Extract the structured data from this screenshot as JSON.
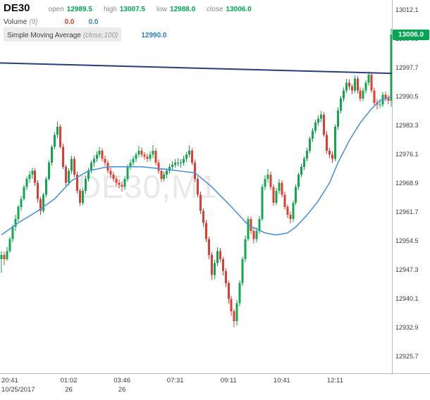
{
  "watermark": "DE30,M1",
  "header": {
    "symbol": "DE30",
    "open_label": "open",
    "open_value": "12989.5",
    "high_label": "high",
    "high_value": "13007.5",
    "low_label": "low",
    "low_value": "12988.0",
    "close_label": "close",
    "close_value": "13006.0",
    "volume_name": "Volume",
    "volume_params": "(9)",
    "volume_value_1": "0.0",
    "volume_value_2": "0.0",
    "sma_name": "Simple Moving Average",
    "sma_params": "(close,100)",
    "sma_value": "12990.0"
  },
  "price_axis": {
    "badge": "13006.0"
  },
  "colors": {
    "bull": "#0fa84e",
    "bear": "#e03c31",
    "sma": "#4f94d8",
    "trendline": "#2b3f77",
    "badge_bg": "#00a651",
    "axis_text": "#3c3c3c"
  },
  "chart_data": {
    "type": "candlestick",
    "symbol": "DE30",
    "timeframe": "M1",
    "title": "DE30,M1",
    "ylim": [
      12921.5,
      13014.6
    ],
    "y_ticks": [
      13012.1,
      13004.9,
      12997.7,
      12990.5,
      12983.3,
      12976.1,
      12968.9,
      12961.7,
      12954.5,
      12947.3,
      12940.1,
      12932.9,
      12925.7
    ],
    "x_ticks": [
      {
        "index": 3,
        "label": "20:41",
        "sub": "10/25/2017"
      },
      {
        "index": 24,
        "label": "01:02",
        "sub": "26"
      },
      {
        "index": 43,
        "label": "03:46",
        "sub": "26"
      },
      {
        "index": 62,
        "label": "07:31",
        "sub": ""
      },
      {
        "index": 81,
        "label": "09:11",
        "sub": ""
      },
      {
        "index": 100,
        "label": "10:41",
        "sub": ""
      },
      {
        "index": 119,
        "label": "12:11",
        "sub": ""
      }
    ],
    "last_price": 13006.0,
    "ohlc_last": {
      "open": 12989.5,
      "high": 13007.5,
      "low": 12988.0,
      "close": 13006.0
    },
    "sma_period": 100,
    "sma_anchors": [
      [
        0,
        12956
      ],
      [
        6,
        12959
      ],
      [
        13,
        12962
      ],
      [
        19,
        12965
      ],
      [
        25,
        12969.5
      ],
      [
        31,
        12972
      ],
      [
        38,
        12973
      ],
      [
        50,
        12973
      ],
      [
        57,
        12972.5
      ],
      [
        63,
        12972
      ],
      [
        69,
        12971.5
      ],
      [
        75,
        12968
      ],
      [
        82,
        12963
      ],
      [
        88,
        12958.5
      ],
      [
        94,
        12956.5
      ],
      [
        98,
        12956
      ],
      [
        102,
        12956.5
      ],
      [
        105,
        12958
      ],
      [
        109,
        12961
      ],
      [
        113,
        12964.5
      ],
      [
        117,
        12969
      ],
      [
        120,
        12974
      ],
      [
        124,
        12979.5
      ],
      [
        128,
        12984
      ],
      [
        132,
        12987.5
      ],
      [
        135,
        12989.5
      ],
      [
        139,
        12990.5
      ]
    ],
    "trendline": {
      "left_price": 12998.9,
      "right_price": 12996.3
    },
    "candles": [
      [
        12950.0,
        12952.0,
        12946.5,
        12951.0
      ],
      [
        12951.0,
        12951.8,
        12948.5,
        12950.0
      ],
      [
        12950.0,
        12953.0,
        12949.5,
        12952.0
      ],
      [
        12952.0,
        12955.5,
        12951.5,
        12955.0
      ],
      [
        12955.0,
        12958.6,
        12954.2,
        12958.0
      ],
      [
        12958.0,
        12961.0,
        12957.0,
        12960.0
      ],
      [
        12960.0,
        12963.5,
        12959.3,
        12963.0
      ],
      [
        12963.0,
        12965.8,
        12962.0,
        12965.0
      ],
      [
        12965.0,
        12968.4,
        12964.5,
        12968.0
      ],
      [
        12968.0,
        12970.6,
        12967.2,
        12970.0
      ],
      [
        12970.0,
        12971.9,
        12969.0,
        12971.0
      ],
      [
        12971.0,
        12972.8,
        12970.0,
        12972.0
      ],
      [
        12972.0,
        12972.6,
        12968.2,
        12969.0
      ],
      [
        12969.0,
        12969.6,
        12964.0,
        12965.0
      ],
      [
        12965.0,
        12965.5,
        12961.0,
        12962.0
      ],
      [
        12962.0,
        12966.5,
        12961.5,
        12966.0
      ],
      [
        12966.0,
        12970.5,
        12965.4,
        12970.0
      ],
      [
        12970.0,
        12974.6,
        12969.5,
        12974.0
      ],
      [
        12974.0,
        12978.5,
        12973.2,
        12978.0
      ],
      [
        12978.0,
        12981.7,
        12977.4,
        12981.0
      ],
      [
        12981.0,
        12984.3,
        12980.2,
        12983.0
      ],
      [
        12983.0,
        12983.6,
        12977.5,
        12978.0
      ],
      [
        12978.0,
        12978.8,
        12972.4,
        12973.0
      ],
      [
        12973.0,
        12973.5,
        12968.2,
        12969.0
      ],
      [
        12969.0,
        12972.6,
        12968.4,
        12972.0
      ],
      [
        12972.0,
        12975.8,
        12971.2,
        12975.0
      ],
      [
        12975.0,
        12975.6,
        12970.4,
        12971.0
      ],
      [
        12971.0,
        12971.8,
        12966.3,
        12967.0
      ],
      [
        12967.0,
        12967.5,
        12963.2,
        12964.0
      ],
      [
        12964.0,
        12967.6,
        12963.4,
        12967.0
      ],
      [
        12967.0,
        12970.8,
        12966.2,
        12970.0
      ],
      [
        12970.0,
        12972.7,
        12969.3,
        12972.0
      ],
      [
        12972.0,
        12974.6,
        12971.4,
        12974.0
      ],
      [
        12974.0,
        12975.9,
        12973.0,
        12975.0
      ],
      [
        12975.0,
        12976.8,
        12974.2,
        12976.0
      ],
      [
        12976.0,
        12978.0,
        12975.3,
        12977.0
      ],
      [
        12977.0,
        12977.6,
        12974.4,
        12975.0
      ],
      [
        12975.0,
        12975.8,
        12973.2,
        12974.0
      ],
      [
        12974.0,
        12974.6,
        12971.4,
        12972.0
      ],
      [
        12972.0,
        12972.8,
        12970.2,
        12971.0
      ],
      [
        12971.0,
        12971.7,
        12969.3,
        12970.0
      ],
      [
        12970.0,
        12970.6,
        12968.2,
        12969.0
      ],
      [
        12969.0,
        12969.8,
        12967.6,
        12968.5
      ],
      [
        12968.5,
        12969.4,
        12966.8,
        12968.0
      ],
      [
        12968.0,
        12970.7,
        12967.3,
        12970.0
      ],
      [
        12970.0,
        12973.6,
        12969.4,
        12973.0
      ],
      [
        12973.0,
        12974.8,
        12972.2,
        12974.0
      ],
      [
        12974.0,
        12975.7,
        12973.3,
        12975.0
      ],
      [
        12975.0,
        12976.6,
        12974.2,
        12976.0
      ],
      [
        12976.0,
        12978.2,
        12975.4,
        12977.0
      ],
      [
        12977.0,
        12977.8,
        12975.3,
        12976.0
      ],
      [
        12976.0,
        12976.7,
        12974.8,
        12975.5
      ],
      [
        12975.5,
        12976.3,
        12974.2,
        12975.0
      ],
      [
        12975.0,
        12976.8,
        12974.4,
        12976.0
      ],
      [
        12976.0,
        12978.4,
        12975.2,
        12977.0
      ],
      [
        12977.0,
        12977.6,
        12973.4,
        12974.0
      ],
      [
        12974.0,
        12974.8,
        12971.3,
        12972.0
      ],
      [
        12972.0,
        12972.6,
        12969.2,
        12970.0
      ],
      [
        12970.0,
        12971.8,
        12969.4,
        12971.0
      ],
      [
        12971.0,
        12972.7,
        12970.2,
        12972.0
      ],
      [
        12972.0,
        12973.8,
        12971.3,
        12973.0
      ],
      [
        12973.0,
        12974.4,
        12972.2,
        12973.5
      ],
      [
        12973.5,
        12974.9,
        12972.8,
        12974.0
      ],
      [
        12974.0,
        12975.2,
        12973.1,
        12974.0
      ],
      [
        12974.0,
        12974.9,
        12972.8,
        12974.0
      ],
      [
        12974.0,
        12975.8,
        12973.3,
        12975.0
      ],
      [
        12975.0,
        12976.7,
        12974.2,
        12976.0
      ],
      [
        12976.0,
        12978.3,
        12975.3,
        12977.0
      ],
      [
        12977.0,
        12977.6,
        12973.4,
        12974.0
      ],
      [
        12974.0,
        12974.8,
        12969.2,
        12970.0
      ],
      [
        12970.0,
        12970.6,
        12965.3,
        12966.0
      ],
      [
        12966.0,
        12966.8,
        12961.2,
        12962.0
      ],
      [
        12962.0,
        12962.6,
        12958.0,
        12959.0
      ],
      [
        12959.0,
        12959.8,
        12954.2,
        12955.0
      ],
      [
        12955.0,
        12955.6,
        12950.0,
        12951.0
      ],
      [
        12951.0,
        12951.8,
        12944.8,
        12946.0
      ],
      [
        12946.0,
        12949.8,
        12945.0,
        12949.0
      ],
      [
        12949.0,
        12952.9,
        12948.2,
        12952.0
      ],
      [
        12952.0,
        12952.8,
        12949.2,
        12950.0
      ],
      [
        12950.0,
        12950.6,
        12945.9,
        12947.0
      ],
      [
        12947.0,
        12947.7,
        12943.0,
        12944.0
      ],
      [
        12944.0,
        12944.6,
        12938.9,
        12940.0
      ],
      [
        12940.0,
        12940.8,
        12935.8,
        12937.0
      ],
      [
        12937.0,
        12937.5,
        12933.0,
        12934.5
      ],
      [
        12934.5,
        12939.8,
        12933.4,
        12939.0
      ],
      [
        12939.0,
        12944.7,
        12938.2,
        12944.0
      ],
      [
        12944.0,
        12950.6,
        12943.3,
        12950.0
      ],
      [
        12950.0,
        12955.8,
        12949.2,
        12955.0
      ],
      [
        12955.0,
        12960.7,
        12954.4,
        12960.0
      ],
      [
        12960.0,
        12960.6,
        12956.2,
        12957.0
      ],
      [
        12957.0,
        12957.8,
        12953.8,
        12955.0
      ],
      [
        12955.0,
        12957.9,
        12954.2,
        12957.0
      ],
      [
        12957.0,
        12960.8,
        12956.3,
        12960.0
      ],
      [
        12960.0,
        12968.7,
        12959.4,
        12968.0
      ],
      [
        12968.0,
        12970.9,
        12967.2,
        12970.0
      ],
      [
        12970.0,
        12972.4,
        12969.1,
        12971.0
      ],
      [
        12971.0,
        12971.8,
        12967.3,
        12968.0
      ],
      [
        12968.0,
        12968.6,
        12963.2,
        12964.0
      ],
      [
        12964.0,
        12967.8,
        12963.4,
        12967.0
      ],
      [
        12967.0,
        12969.9,
        12966.2,
        12969.0
      ],
      [
        12969.0,
        12969.6,
        12965.4,
        12966.0
      ],
      [
        12966.0,
        12966.8,
        12962.3,
        12963.0
      ],
      [
        12963.0,
        12963.6,
        12960.2,
        12961.0
      ],
      [
        12961.0,
        12961.8,
        12958.9,
        12960.0
      ],
      [
        12960.0,
        12964.6,
        12959.3,
        12964.0
      ],
      [
        12964.0,
        12968.7,
        12963.4,
        12968.0
      ],
      [
        12968.0,
        12971.6,
        12967.2,
        12971.0
      ],
      [
        12971.0,
        12973.8,
        12970.4,
        12973.0
      ],
      [
        12973.0,
        12975.6,
        12972.2,
        12975.0
      ],
      [
        12975.0,
        12977.7,
        12974.3,
        12977.0
      ],
      [
        12977.0,
        12980.5,
        12976.4,
        12980.0
      ],
      [
        12980.0,
        12982.6,
        12979.2,
        12982.0
      ],
      [
        12982.0,
        12984.7,
        12981.3,
        12984.0
      ],
      [
        12984.0,
        12985.8,
        12983.2,
        12985.0
      ],
      [
        12985.0,
        12986.9,
        12984.1,
        12986.0
      ],
      [
        12986.0,
        12986.6,
        12980.4,
        12981.0
      ],
      [
        12981.0,
        12981.8,
        12976.2,
        12977.0
      ],
      [
        12977.0,
        12977.7,
        12975.2,
        12976.0
      ],
      [
        12976.0,
        12976.8,
        12973.9,
        12975.0
      ],
      [
        12975.0,
        12983.6,
        12974.4,
        12983.0
      ],
      [
        12983.0,
        12987.8,
        12982.2,
        12987.0
      ],
      [
        12987.0,
        12990.7,
        12986.3,
        12990.0
      ],
      [
        12990.0,
        12992.8,
        12989.2,
        12992.0
      ],
      [
        12992.0,
        12994.9,
        12991.4,
        12994.0
      ],
      [
        12994.0,
        12994.8,
        12992.2,
        12993.0
      ],
      [
        12993.0,
        12993.6,
        12991.1,
        12992.0
      ],
      [
        12992.0,
        12995.8,
        12991.4,
        12995.0
      ],
      [
        12995.0,
        12995.6,
        12991.2,
        12992.0
      ],
      [
        12992.0,
        12992.8,
        12989.3,
        12990.0
      ],
      [
        12990.0,
        12992.7,
        12989.4,
        12992.0
      ],
      [
        12992.0,
        12994.6,
        12991.2,
        12994.0
      ],
      [
        12994.0,
        12996.8,
        12993.3,
        12996.0
      ],
      [
        12996.0,
        12996.6,
        12991.4,
        12992.0
      ],
      [
        12992.0,
        12992.7,
        12988.4,
        12989.0
      ],
      [
        12989.0,
        12989.8,
        12987.3,
        12988.5
      ],
      [
        12988.5,
        12989.9,
        12987.6,
        12988.5
      ],
      [
        12988.5,
        12991.7,
        12987.9,
        12991.0
      ],
      [
        12991.0,
        12991.8,
        12989.3,
        12990.0
      ],
      [
        12990.0,
        12990.9,
        12988.6,
        12989.5
      ],
      [
        12989.5,
        13007.5,
        12988.0,
        13006.0
      ]
    ]
  }
}
